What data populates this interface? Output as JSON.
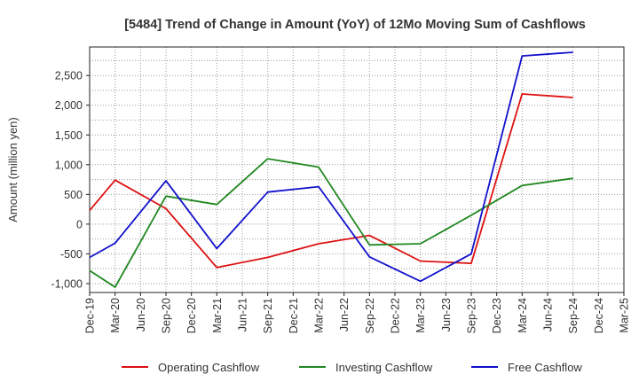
{
  "chart_data": {
    "type": "line",
    "title": "[5484]  Trend of Change in Amount (YoY) of 12Mo Moving Sum of Cashflows",
    "xlabel": "",
    "ylabel": "Amount (million yen)",
    "ylim": [
      -1150,
      2980
    ],
    "yticks": [
      -1000,
      -500,
      0,
      500,
      1000,
      1500,
      2000,
      2500
    ],
    "ytick_labels": [
      "-1,000",
      "-500",
      "0",
      "500",
      "1,000",
      "1,500",
      "2,000",
      "2,500"
    ],
    "categories": [
      "Dec-19",
      "Mar-20",
      "Jun-20",
      "Sep-20",
      "Dec-20",
      "Mar-21",
      "Jun-21",
      "Sep-21",
      "Dec-21",
      "Mar-22",
      "Jun-22",
      "Sep-22",
      "Dec-22",
      "Mar-23",
      "Jun-23",
      "Sep-23",
      "Dec-23",
      "Mar-24",
      "Jun-24",
      "Sep-24",
      "Dec-24",
      "Mar-25"
    ],
    "x_axis_labels": [
      "Dec-19",
      "Mar-20",
      "Jun-20",
      "Sep-20",
      "Dec-20",
      "Mar-21",
      "Jun-21",
      "Sep-21",
      "Dec-21",
      "Mar-22",
      "Jun-22",
      "Sep-22",
      "Dec-22",
      "Mar-23",
      "Jun-23",
      "Sep-23",
      "Dec-23",
      "Mar-24",
      "Jun-24",
      "Sep-24",
      "Dec-24",
      "Mar-25"
    ],
    "grid": true,
    "legend_position": "bottom",
    "series": [
      {
        "name": "Operating Cashflow",
        "color": "#dd1111",
        "points": [
          [
            0,
            230
          ],
          [
            1,
            740
          ],
          [
            3,
            260
          ],
          [
            5,
            -730
          ],
          [
            7,
            -560
          ],
          [
            9,
            -330
          ],
          [
            11,
            -190
          ],
          [
            13,
            -620
          ],
          [
            15,
            -660
          ],
          [
            17,
            2190
          ],
          [
            19,
            2130
          ]
        ]
      },
      {
        "name": "Investing Cashflow",
        "color": "#228822",
        "points": [
          [
            0,
            -780
          ],
          [
            1,
            -1060
          ],
          [
            3,
            470
          ],
          [
            5,
            330
          ],
          [
            7,
            1100
          ],
          [
            9,
            960
          ],
          [
            11,
            -350
          ],
          [
            13,
            -330
          ],
          [
            15,
            150
          ],
          [
            17,
            650
          ],
          [
            19,
            770
          ]
        ]
      },
      {
        "name": "Free Cashflow",
        "color": "#1111cc",
        "points": [
          [
            0,
            -560
          ],
          [
            1,
            -320
          ],
          [
            3,
            730
          ],
          [
            5,
            -410
          ],
          [
            7,
            540
          ],
          [
            9,
            630
          ],
          [
            11,
            -550
          ],
          [
            13,
            -960
          ],
          [
            15,
            -500
          ],
          [
            17,
            2830
          ],
          [
            19,
            2890
          ]
        ]
      }
    ]
  }
}
